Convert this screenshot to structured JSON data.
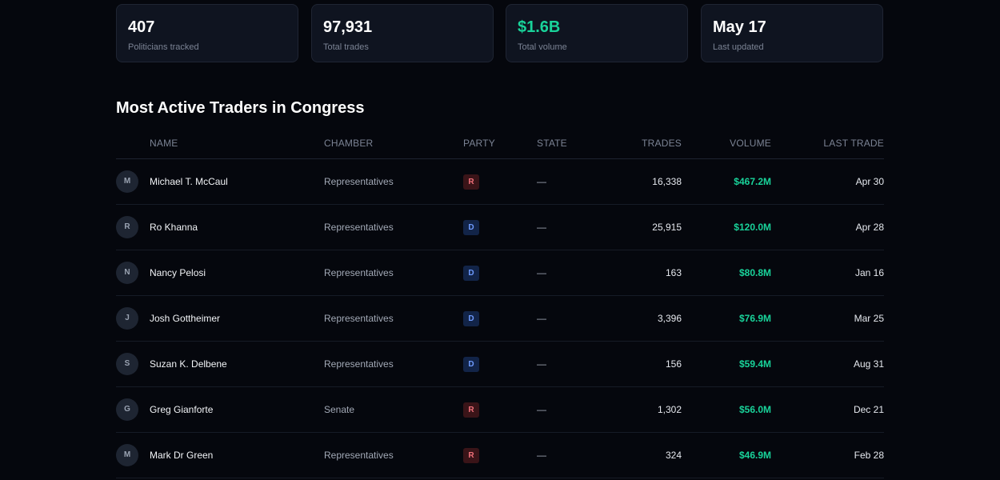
{
  "stats": [
    {
      "value": "407",
      "label": "Politicians tracked",
      "accent": false
    },
    {
      "value": "97,931",
      "label": "Total trades",
      "accent": false
    },
    {
      "value": "$1.6B",
      "label": "Total volume",
      "accent": true
    },
    {
      "value": "May 17",
      "label": "Last updated",
      "accent": false
    }
  ],
  "section": {
    "title": "Most Active Traders in Congress"
  },
  "table": {
    "headers": {
      "name": "NAME",
      "chamber": "CHAMBER",
      "party": "PARTY",
      "state": "STATE",
      "trades": "TRADES",
      "volume": "VOLUME",
      "last_trade": "LAST TRADE"
    },
    "rows": [
      {
        "initial": "M",
        "name": "Michael T. McCaul",
        "chamber": "Representatives",
        "party": "R",
        "state": "—",
        "trades": "16,338",
        "volume": "$467.2M",
        "last_trade": "Apr 30"
      },
      {
        "initial": "R",
        "name": "Ro Khanna",
        "chamber": "Representatives",
        "party": "D",
        "state": "—",
        "trades": "25,915",
        "volume": "$120.0M",
        "last_trade": "Apr 28"
      },
      {
        "initial": "N",
        "name": "Nancy Pelosi",
        "chamber": "Representatives",
        "party": "D",
        "state": "—",
        "trades": "163",
        "volume": "$80.8M",
        "last_trade": "Jan 16"
      },
      {
        "initial": "J",
        "name": "Josh Gottheimer",
        "chamber": "Representatives",
        "party": "D",
        "state": "—",
        "trades": "3,396",
        "volume": "$76.9M",
        "last_trade": "Mar 25"
      },
      {
        "initial": "S",
        "name": "Suzan K. Delbene",
        "chamber": "Representatives",
        "party": "D",
        "state": "—",
        "trades": "156",
        "volume": "$59.4M",
        "last_trade": "Aug 31"
      },
      {
        "initial": "G",
        "name": "Greg Gianforte",
        "chamber": "Senate",
        "party": "R",
        "state": "—",
        "trades": "1,302",
        "volume": "$56.0M",
        "last_trade": "Dec 21"
      },
      {
        "initial": "M",
        "name": "Mark Dr Green",
        "chamber": "Representatives",
        "party": "R",
        "state": "—",
        "trades": "324",
        "volume": "$46.9M",
        "last_trade": "Feb 28"
      }
    ]
  },
  "colors": {
    "background": "#05070d",
    "card": "#0f1420",
    "accent_green": "#19d39a",
    "republican": "#f0707a",
    "democrat": "#6f9bff"
  }
}
